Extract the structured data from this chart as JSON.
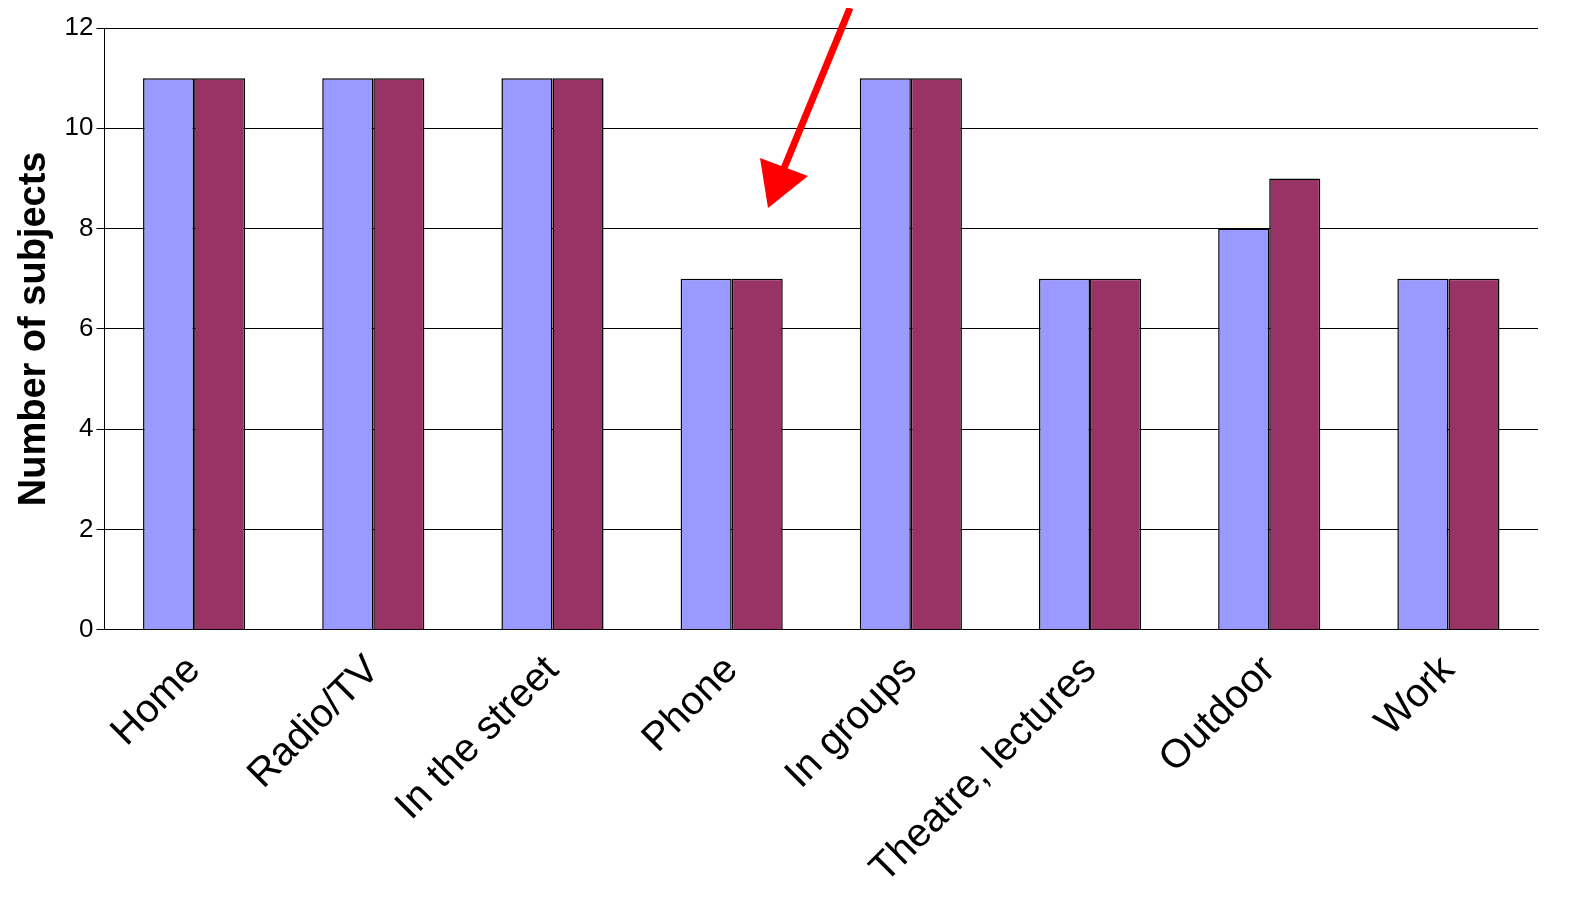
{
  "chart_data": {
    "type": "bar",
    "ylabel": "Number of subjects",
    "categories": [
      "Home",
      "Radio/TV",
      "In the street",
      "Phone",
      "In groups",
      "Theatre, lectures",
      "Outdoor",
      "Work"
    ],
    "series": [
      {
        "color": "#9999ff",
        "values": [
          11,
          11,
          11,
          7,
          11,
          7,
          8,
          7
        ]
      },
      {
        "color": "#993366",
        "values": [
          11,
          11,
          11,
          7,
          11,
          7,
          9,
          7
        ]
      }
    ],
    "ylim": [
      0,
      12
    ],
    "yticks": [
      0,
      2,
      4,
      6,
      8,
      10,
      12
    ],
    "grid": "y"
  }
}
